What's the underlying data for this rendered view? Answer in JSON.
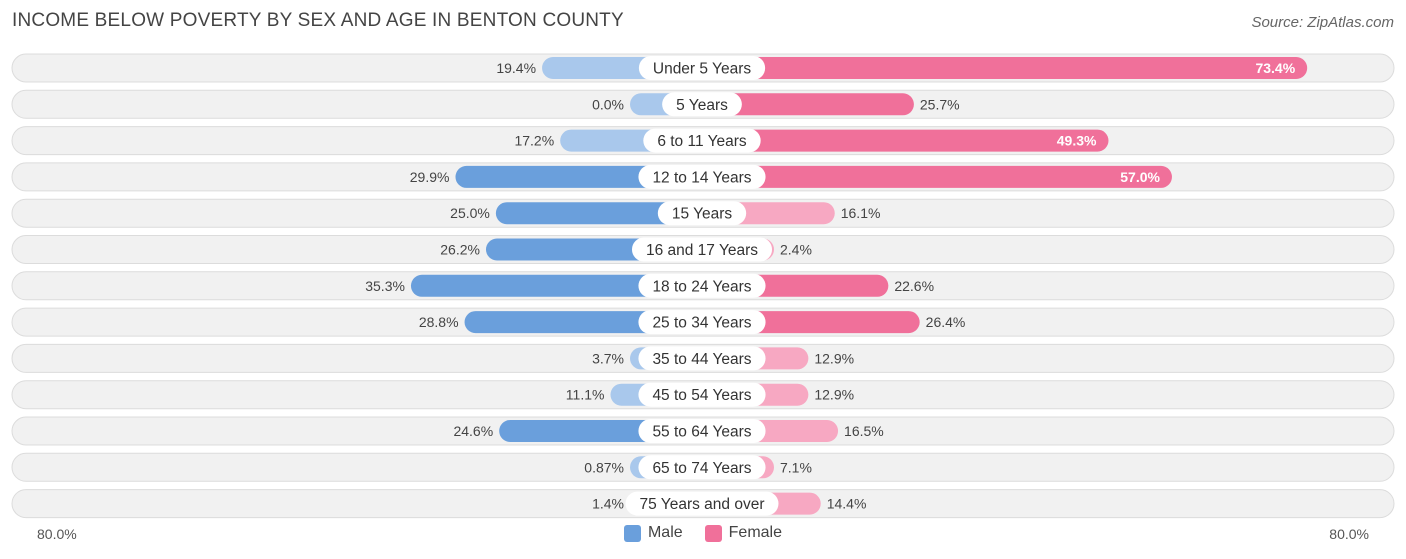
{
  "header": {
    "title": "INCOME BELOW POVERTY BY SEX AND AGE IN BENTON COUNTY",
    "source": "Source: ZipAtlas.com"
  },
  "colors": {
    "male_strong": "#6a9fdc",
    "male_light": "#a9c8ec",
    "female_strong": "#f0709a",
    "female_light": "#f7a8c2",
    "row_bg": "#f1f1f1",
    "row_border": "#dcdcdc"
  },
  "legend": {
    "male_label": "Male",
    "female_label": "Female"
  },
  "axis": {
    "left_label": "80.0%",
    "right_label": "80.0%"
  },
  "chart_data": {
    "type": "bar",
    "orientation": "horizontal-diverging",
    "title": "INCOME BELOW POVERTY BY SEX AND AGE IN BENTON COUNTY",
    "xlim": [
      -80,
      80
    ],
    "categories": [
      "Under 5 Years",
      "5 Years",
      "6 to 11 Years",
      "12 to 14 Years",
      "15 Years",
      "16 and 17 Years",
      "18 to 24 Years",
      "25 to 34 Years",
      "35 to 44 Years",
      "45 to 54 Years",
      "55 to 64 Years",
      "65 to 74 Years",
      "75 Years and over"
    ],
    "series": [
      {
        "name": "Male",
        "values": [
          19.4,
          0.0,
          17.2,
          29.9,
          25.0,
          26.2,
          35.3,
          28.8,
          3.7,
          11.1,
          24.6,
          0.87,
          1.4
        ],
        "labels": [
          "19.4%",
          "0.0%",
          "17.2%",
          "29.9%",
          "25.0%",
          "26.2%",
          "35.3%",
          "28.8%",
          "3.7%",
          "11.1%",
          "24.6%",
          "0.87%",
          "1.4%"
        ]
      },
      {
        "name": "Female",
        "values": [
          73.4,
          25.7,
          49.3,
          57.0,
          16.1,
          2.4,
          22.6,
          26.4,
          12.9,
          12.9,
          16.5,
          7.1,
          14.4
        ],
        "labels": [
          "73.4%",
          "25.7%",
          "49.3%",
          "57.0%",
          "16.1%",
          "2.4%",
          "22.6%",
          "26.4%",
          "12.9%",
          "12.9%",
          "16.5%",
          "7.1%",
          "14.4%"
        ]
      }
    ]
  }
}
